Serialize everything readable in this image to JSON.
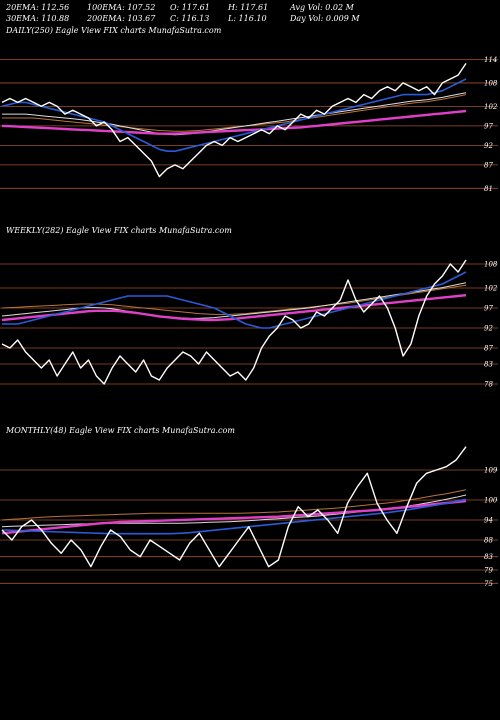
{
  "header": {
    "ema20": "20EMA: 112.56",
    "ema100": "100EMA: 107.52",
    "open": "O: 117.61",
    "high": "H: 117.61",
    "avg_vol": "Avg Vol: 0.02  M",
    "ema30": "30EMA: 110.88",
    "ema200": "200EMA: 103.67",
    "close": "C: 116.13",
    "low": "L: 116.10",
    "day_vol": "Day Vol: 0.009 M"
  },
  "colors": {
    "background": "#000000",
    "price": "#ffffff",
    "ema_blue": "#2b5bd8",
    "ema_magenta": "#e040c8",
    "ema_orange": "#b8743a",
    "ema_white": "#dddddd",
    "level_line": "#a0522d"
  },
  "chart_data": [
    {
      "type": "line",
      "title": "DAILY(250) Eagle  View  FIX  charts MunafaSutra.com",
      "yticks": [
        "114",
        "108",
        "102",
        "97",
        "92",
        "87",
        "81"
      ],
      "ylim": [
        78,
        119
      ],
      "x_count": 60,
      "series": [
        {
          "role": "price",
          "values": [
            103,
            104,
            103,
            104,
            103,
            102,
            103,
            102,
            100,
            101,
            100,
            99,
            97,
            98,
            96,
            93,
            94,
            92,
            90,
            88,
            84,
            86,
            87,
            86,
            88,
            90,
            92,
            93,
            92,
            94,
            93,
            94,
            95,
            96,
            95,
            97,
            96,
            98,
            100,
            99,
            101,
            100,
            102,
            103,
            104,
            103,
            105,
            104,
            106,
            107,
            106,
            108,
            107,
            106,
            107,
            105,
            108,
            109,
            110,
            113
          ]
        },
        {
          "role": "ema-blue",
          "values": [
            102,
            102.5,
            103,
            103,
            102.5,
            102,
            101.5,
            101,
            100.5,
            100,
            99.5,
            99,
            98.5,
            98,
            97,
            96,
            95,
            94,
            93,
            92,
            91,
            90.5,
            90.5,
            91,
            91.5,
            92,
            92.5,
            93,
            93.5,
            94,
            94.5,
            95,
            95.5,
            96,
            96.5,
            97,
            97.5,
            98,
            98.5,
            99,
            99.5,
            100,
            100.5,
            101,
            101.5,
            102,
            102.5,
            103,
            103.5,
            104,
            104.5,
            105,
            105,
            105,
            105,
            105.5,
            106,
            107,
            108,
            109
          ]
        },
        {
          "role": "ema-magenta",
          "values": [
            97,
            96.9,
            96.8,
            96.7,
            96.6,
            96.5,
            96.4,
            96.3,
            96.2,
            96.1,
            96,
            95.9,
            95.8,
            95.7,
            95.6,
            95.5,
            95.4,
            95.3,
            95.2,
            95.1,
            95,
            95,
            95,
            95.1,
            95.2,
            95.3,
            95.4,
            95.5,
            95.6,
            95.7,
            95.8,
            95.9,
            96,
            96.1,
            96.2,
            96.3,
            96.4,
            96.5,
            96.6,
            96.8,
            97,
            97.2,
            97.4,
            97.6,
            97.8,
            98,
            98.2,
            98.4,
            98.6,
            98.8,
            99,
            99.2,
            99.4,
            99.6,
            99.8,
            100,
            100.2,
            100.4,
            100.6,
            100.8
          ]
        },
        {
          "role": "ema-orange",
          "values": [
            99,
            99,
            99,
            99,
            99,
            98.8,
            98.6,
            98.4,
            98.2,
            98,
            97.8,
            97.6,
            97.4,
            97.2,
            97,
            96.8,
            96.6,
            96.4,
            96.2,
            96,
            95.8,
            95.7,
            95.6,
            95.6,
            95.7,
            95.8,
            96,
            96.2,
            96.4,
            96.6,
            96.8,
            97,
            97.2,
            97.4,
            97.6,
            97.8,
            98,
            98.3,
            98.6,
            98.9,
            99.2,
            99.5,
            99.8,
            100.1,
            100.4,
            100.7,
            101,
            101.3,
            101.6,
            101.9,
            102.2,
            102.5,
            102.8,
            103,
            103.2,
            103.5,
            103.8,
            104.2,
            104.6,
            105
          ]
        },
        {
          "role": "ema-white",
          "values": [
            100,
            100,
            100,
            100,
            99.8,
            99.6,
            99.4,
            99.2,
            99,
            98.8,
            98.6,
            98.3,
            98,
            97.7,
            97.4,
            97,
            96.6,
            96.2,
            95.8,
            95.4,
            95,
            94.8,
            94.7,
            94.8,
            95,
            95.2,
            95.5,
            95.8,
            96.1,
            96.4,
            96.7,
            97,
            97.3,
            97.6,
            97.9,
            98.2,
            98.5,
            98.8,
            99.1,
            99.4,
            99.7,
            100,
            100.3,
            100.6,
            100.9,
            101.2,
            101.5,
            101.8,
            102.1,
            102.4,
            102.7,
            103,
            103.3,
            103.5,
            103.7,
            104,
            104.3,
            104.7,
            105.1,
            105.5
          ]
        }
      ]
    },
    {
      "type": "line",
      "title": "WEEKLY(282) Eagle  View  FIX  charts MunafaSutra.com",
      "yticks": [
        "108",
        "102",
        "97",
        "92",
        "87",
        "83",
        "78"
      ],
      "ylim": [
        74,
        114
      ],
      "x_count": 60,
      "series": [
        {
          "role": "price",
          "values": [
            88,
            87,
            89,
            86,
            84,
            82,
            84,
            80,
            83,
            86,
            82,
            84,
            80,
            78,
            82,
            85,
            83,
            81,
            84,
            80,
            79,
            82,
            84,
            86,
            85,
            83,
            86,
            84,
            82,
            80,
            81,
            79,
            82,
            87,
            90,
            92,
            95,
            94,
            92,
            93,
            96,
            95,
            97,
            99,
            104,
            99,
            96,
            98,
            100,
            97,
            92,
            85,
            88,
            95,
            100,
            103,
            105,
            108,
            106,
            109
          ]
        },
        {
          "role": "ema-blue",
          "values": [
            93,
            93,
            93,
            93.5,
            94,
            94.5,
            95,
            95.5,
            96,
            96.5,
            97,
            97.5,
            98,
            98.5,
            99,
            99.5,
            100,
            100,
            100,
            100,
            100,
            100,
            99.5,
            99,
            98.5,
            98,
            97.5,
            97,
            96,
            95,
            94,
            93,
            92.5,
            92,
            92,
            92.5,
            93,
            93.5,
            94,
            94.5,
            95,
            95.5,
            96,
            96.5,
            97,
            97.5,
            98,
            98.5,
            99,
            99.5,
            100,
            100.5,
            101,
            101.5,
            102,
            102.5,
            103,
            104,
            105,
            106
          ]
        },
        {
          "role": "ema-magenta",
          "values": [
            94,
            94.2,
            94.4,
            94.6,
            94.8,
            95,
            95.2,
            95.4,
            95.6,
            95.8,
            96,
            96.2,
            96.3,
            96.3,
            96.3,
            96.2,
            96,
            95.8,
            95.5,
            95.2,
            94.9,
            94.7,
            94.5,
            94.3,
            94.2,
            94.1,
            94,
            94,
            94.1,
            94.2,
            94.4,
            94.6,
            94.8,
            95,
            95.2,
            95.4,
            95.6,
            95.8,
            96,
            96.2,
            96.4,
            96.6,
            96.8,
            97,
            97.2,
            97.4,
            97.6,
            97.8,
            98,
            98.2,
            98.4,
            98.6,
            98.8,
            99,
            99.2,
            99.4,
            99.6,
            99.8,
            100,
            100.2
          ]
        },
        {
          "role": "ema-orange",
          "values": [
            97,
            97.1,
            97.2,
            97.3,
            97.4,
            97.5,
            97.6,
            97.7,
            97.8,
            97.9,
            98,
            98,
            98,
            97.9,
            97.8,
            97.6,
            97.4,
            97.2,
            97,
            96.8,
            96.6,
            96.4,
            96.2,
            96,
            95.8,
            95.6,
            95.5,
            95.4,
            95.4,
            95.4,
            95.5,
            95.6,
            95.8,
            96,
            96.2,
            96.4,
            96.6,
            96.8,
            97,
            97.2,
            97.4,
            97.6,
            97.8,
            98,
            98.2,
            98.5,
            98.8,
            99.1,
            99.4,
            99.7,
            100,
            100.3,
            100.6,
            100.9,
            101.2,
            101.5,
            101.8,
            102.1,
            102.4,
            102.7
          ]
        },
        {
          "role": "ema-white",
          "values": [
            95,
            95.2,
            95.4,
            95.6,
            95.8,
            96,
            96.2,
            96.4,
            96.6,
            96.8,
            97,
            97.1,
            97.1,
            97,
            96.8,
            96.5,
            96.2,
            95.9,
            95.6,
            95.3,
            95,
            94.8,
            94.6,
            94.5,
            94.4,
            94.4,
            94.5,
            94.6,
            94.8,
            95,
            95.2,
            95.4,
            95.6,
            95.8,
            96,
            96.2,
            96.4,
            96.6,
            96.8,
            97,
            97.3,
            97.6,
            97.9,
            98.2,
            98.5,
            98.8,
            99.1,
            99.4,
            99.7,
            100,
            100.3,
            100.6,
            100.9,
            101.2,
            101.5,
            101.8,
            102.1,
            102.5,
            102.9,
            103.3
          ]
        }
      ]
    },
    {
      "type": "line",
      "title": "MONTHLY(48) Eagle  View  FIX  charts MunafaSutra.com",
      "yticks": [
        "109",
        "100",
        "94",
        "88",
        "83",
        "79",
        "75"
      ],
      "ylim": [
        70,
        118
      ],
      "x_count": 48,
      "series": [
        {
          "role": "price",
          "values": [
            91,
            88,
            92,
            94,
            91,
            87,
            84,
            88,
            85,
            80,
            86,
            91,
            89,
            85,
            83,
            88,
            86,
            84,
            82,
            87,
            90,
            85,
            80,
            84,
            88,
            92,
            86,
            80,
            82,
            92,
            98,
            95,
            97,
            94,
            90,
            99,
            104,
            108,
            99,
            94,
            90,
            98,
            105,
            108,
            109,
            110,
            112,
            116
          ]
        },
        {
          "role": "ema-blue",
          "values": [
            91,
            90.9,
            90.8,
            90.7,
            90.6,
            90.5,
            90.4,
            90.3,
            90.2,
            90.1,
            90,
            89.9,
            89.9,
            89.9,
            89.9,
            89.9,
            89.9,
            89.9,
            90,
            90.2,
            90.5,
            90.8,
            91.1,
            91.4,
            91.7,
            92,
            92.3,
            92.6,
            92.9,
            93.2,
            93.5,
            93.8,
            94.1,
            94.4,
            94.7,
            95,
            95.3,
            95.6,
            95.9,
            96.2,
            96.6,
            97,
            97.5,
            98,
            98.5,
            99,
            99.6,
            100.2
          ]
        },
        {
          "role": "ema-magenta",
          "values": [
            90,
            90.3,
            90.6,
            90.9,
            91.2,
            91.5,
            91.8,
            92.1,
            92.4,
            92.7,
            93,
            93.2,
            93.4,
            93.5,
            93.6,
            93.7,
            93.8,
            93.9,
            94,
            94.1,
            94.2,
            94.3,
            94.4,
            94.5,
            94.6,
            94.7,
            94.8,
            94.9,
            95,
            95.2,
            95.4,
            95.6,
            95.8,
            96,
            96.2,
            96.4,
            96.6,
            96.8,
            97,
            97.3,
            97.6,
            97.9,
            98.2,
            98.5,
            98.8,
            99.1,
            99.4,
            99.7
          ]
        },
        {
          "role": "ema-orange",
          "values": [
            94,
            94.2,
            94.4,
            94.6,
            94.8,
            95,
            95.1,
            95.2,
            95.3,
            95.4,
            95.5,
            95.6,
            95.7,
            95.8,
            95.9,
            96,
            96,
            96,
            96,
            96,
            96,
            96,
            96,
            96,
            96,
            96.1,
            96.2,
            96.3,
            96.4,
            96.6,
            96.8,
            97,
            97.2,
            97.4,
            97.6,
            97.9,
            98.2,
            98.5,
            98.8,
            99.1,
            99.5,
            99.9,
            100.4,
            100.9,
            101.4,
            101.9,
            102.5,
            103.1
          ]
        },
        {
          "role": "ema-white",
          "values": [
            92,
            92.1,
            92.2,
            92.3,
            92.4,
            92.5,
            92.6,
            92.7,
            92.8,
            92.9,
            93,
            93,
            93,
            93,
            93,
            93,
            93,
            93,
            93,
            93.1,
            93.2,
            93.3,
            93.4,
            93.5,
            93.6,
            93.8,
            94,
            94.2,
            94.4,
            94.6,
            94.8,
            95,
            95.2,
            95.5,
            95.8,
            96.1,
            96.4,
            96.7,
            97,
            97.3,
            97.7,
            98.1,
            98.6,
            99.1,
            99.6,
            100.2,
            100.8,
            101.5
          ]
        }
      ]
    }
  ]
}
